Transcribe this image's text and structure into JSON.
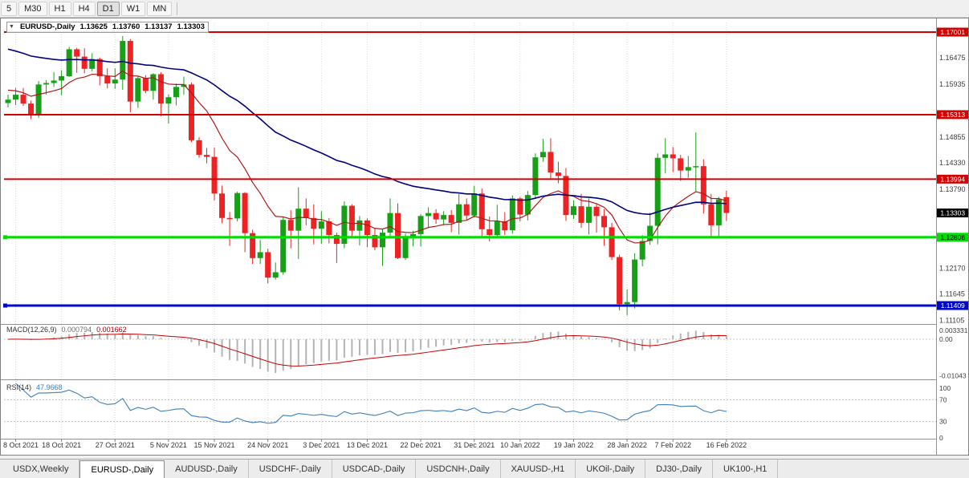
{
  "toolbar": {
    "timeframes": [
      {
        "label": "5"
      },
      {
        "label": "M30"
      },
      {
        "label": "H1"
      },
      {
        "label": "H4"
      },
      {
        "label": "D1",
        "active": true
      },
      {
        "label": "W1"
      },
      {
        "label": "MN"
      }
    ]
  },
  "chart_header": {
    "symbol": "EURUSD-,Daily",
    "open": "1.13625",
    "high": "1.13760",
    "low": "1.13137",
    "close": "1.13303"
  },
  "colors": {
    "candle_up": "#16a016",
    "candle_down": "#ee2222",
    "grid": "#dadada",
    "axis_text": "#3c3c3c",
    "separator": "#909090"
  },
  "chart_data": {
    "type": "candlestick",
    "symbol": "EURUSD",
    "timeframe": "Daily",
    "price_axis": {
      "min": 1.11048,
      "max": 1.17198,
      "ticks": [
        "1.16475",
        "1.15935",
        "1.14855",
        "1.14330",
        "1.13790",
        "1.12170",
        "1.11645",
        "1.11105"
      ]
    },
    "x_labels": [
      {
        "text": "8 Oct 2021",
        "i": 1
      },
      {
        "text": "18 Oct 2021",
        "i": 7
      },
      {
        "text": "27 Oct 2021",
        "i": 14
      },
      {
        "text": "5 Nov 2021",
        "i": 21
      },
      {
        "text": "15 Nov 2021",
        "i": 27
      },
      {
        "text": "24 Nov 2021",
        "i": 34
      },
      {
        "text": "3 Dec 2021",
        "i": 41
      },
      {
        "text": "13 Dec 2021",
        "i": 47
      },
      {
        "text": "22 Dec 2021",
        "i": 54
      },
      {
        "text": "31 Dec 2021",
        "i": 61
      },
      {
        "text": "10 Jan 2022",
        "i": 67
      },
      {
        "text": "19 Jan 2022",
        "i": 74
      },
      {
        "text": "28 Jan 2022",
        "i": 81
      },
      {
        "text": "7 Feb 2022",
        "i": 87
      },
      {
        "text": "16 Feb 2022",
        "i": 94
      }
    ],
    "h_lines": [
      {
        "price": 1.17001,
        "label": "1.17001",
        "color": "#d40000",
        "stroke": 2,
        "badge_text": "#ffffff"
      },
      {
        "price": 1.15313,
        "label": "1.15313",
        "color": "#d40000",
        "stroke": 2,
        "badge_text": "#ffffff"
      },
      {
        "price": 1.13994,
        "label": "1.13994",
        "color": "#d40000",
        "stroke": 2,
        "badge_text": "#ffffff"
      },
      {
        "price": 1.12806,
        "label": "1.12806",
        "color": "#00dd00",
        "stroke": 3,
        "handle": true,
        "badge_text": "#000000"
      },
      {
        "price": 1.11409,
        "label": "1.11409",
        "color": "#0008cc",
        "stroke": 3,
        "handle": true,
        "badge_text": "#ffffff"
      }
    ],
    "current_price": {
      "price": 1.13303,
      "label": "1.13303",
      "badge_color": "#000000",
      "text_color": "#ffffff"
    },
    "moving_averages": [
      {
        "name": "ma-fast",
        "period": 12,
        "seed": 1.1585,
        "color": "#b01818",
        "width": 1.2
      },
      {
        "name": "ma-slow",
        "period": 45,
        "seed": 1.167,
        "color": "#000080",
        "width": 1.6
      }
    ],
    "ohlc": [
      [
        1.1555,
        1.1572,
        1.1546,
        1.1562
      ],
      [
        1.1562,
        1.1586,
        1.1551,
        1.1572
      ],
      [
        1.1572,
        1.1586,
        1.1549,
        1.1554
      ],
      [
        1.1554,
        1.156,
        1.1522,
        1.153
      ],
      [
        1.153,
        1.16,
        1.1525,
        1.1593
      ],
      [
        1.1593,
        1.1602,
        1.1572,
        1.1596
      ],
      [
        1.1596,
        1.1618,
        1.1588,
        1.1601
      ],
      [
        1.1601,
        1.1622,
        1.1571,
        1.161
      ],
      [
        1.161,
        1.167,
        1.1608,
        1.1665
      ],
      [
        1.1665,
        1.1668,
        1.1617,
        1.165
      ],
      [
        1.165,
        1.1667,
        1.1616,
        1.1625
      ],
      [
        1.1625,
        1.1657,
        1.162,
        1.1645
      ],
      [
        1.1645,
        1.1648,
        1.1591,
        1.161
      ],
      [
        1.161,
        1.1626,
        1.1585,
        1.1595
      ],
      [
        1.1595,
        1.1626,
        1.1584,
        1.1603
      ],
      [
        1.1603,
        1.1692,
        1.1582,
        1.1682
      ],
      [
        1.1682,
        1.1686,
        1.1536,
        1.1558
      ],
      [
        1.1558,
        1.1609,
        1.1545,
        1.1606
      ],
      [
        1.1606,
        1.1612,
        1.1575,
        1.158
      ],
      [
        1.158,
        1.1616,
        1.1562,
        1.1614
      ],
      [
        1.1614,
        1.1618,
        1.1528,
        1.1554
      ],
      [
        1.1554,
        1.1573,
        1.1513,
        1.1567
      ],
      [
        1.1567,
        1.1595,
        1.155,
        1.1588
      ],
      [
        1.1588,
        1.1609,
        1.1572,
        1.1593
      ],
      [
        1.1593,
        1.1597,
        1.1475,
        1.1479
      ],
      [
        1.1479,
        1.1485,
        1.1443,
        1.1449
      ],
      [
        1.1449,
        1.1463,
        1.1432,
        1.1445
      ],
      [
        1.1445,
        1.1464,
        1.1356,
        1.137
      ],
      [
        1.137,
        1.1386,
        1.1309,
        1.132
      ],
      [
        1.132,
        1.1332,
        1.1263,
        1.1319
      ],
      [
        1.1319,
        1.1374,
        1.1313,
        1.1371
      ],
      [
        1.1371,
        1.1373,
        1.125,
        1.1289
      ],
      [
        1.1289,
        1.1296,
        1.1226,
        1.1238
      ],
      [
        1.1238,
        1.1275,
        1.1226,
        1.125
      ],
      [
        1.125,
        1.1257,
        1.1186,
        1.1198
      ],
      [
        1.1198,
        1.1229,
        1.1194,
        1.1209
      ],
      [
        1.1209,
        1.1323,
        1.1204,
        1.1316
      ],
      [
        1.1316,
        1.1336,
        1.1258,
        1.1294
      ],
      [
        1.1294,
        1.1383,
        1.1236,
        1.1339
      ],
      [
        1.1339,
        1.136,
        1.1305,
        1.132
      ],
      [
        1.132,
        1.1348,
        1.1266,
        1.1298
      ],
      [
        1.1298,
        1.1334,
        1.1267,
        1.1313
      ],
      [
        1.1313,
        1.132,
        1.1268,
        1.1285
      ],
      [
        1.1285,
        1.129,
        1.1228,
        1.1267
      ],
      [
        1.1267,
        1.1354,
        1.1258,
        1.1345
      ],
      [
        1.1345,
        1.1348,
        1.128,
        1.1294
      ],
      [
        1.1294,
        1.1324,
        1.1264,
        1.1315
      ],
      [
        1.1315,
        1.1319,
        1.126,
        1.1285
      ],
      [
        1.1285,
        1.13,
        1.1254,
        1.126
      ],
      [
        1.126,
        1.1298,
        1.1222,
        1.129
      ],
      [
        1.129,
        1.136,
        1.128,
        1.133
      ],
      [
        1.133,
        1.135,
        1.1236,
        1.1238
      ],
      [
        1.1238,
        1.1288,
        1.1234,
        1.128
      ],
      [
        1.128,
        1.1294,
        1.1262,
        1.1287
      ],
      [
        1.1287,
        1.1328,
        1.1262,
        1.1324
      ],
      [
        1.1324,
        1.1342,
        1.1301,
        1.133
      ],
      [
        1.133,
        1.1338,
        1.1308,
        1.1317
      ],
      [
        1.1317,
        1.1334,
        1.1305,
        1.1326
      ],
      [
        1.1326,
        1.1336,
        1.1291,
        1.131
      ],
      [
        1.131,
        1.1369,
        1.1286,
        1.1348
      ],
      [
        1.1348,
        1.136,
        1.1316,
        1.1325
      ],
      [
        1.1325,
        1.1386,
        1.1321,
        1.137
      ],
      [
        1.137,
        1.138,
        1.1279,
        1.1297
      ],
      [
        1.1297,
        1.1323,
        1.1272,
        1.1285
      ],
      [
        1.1285,
        1.1347,
        1.1281,
        1.1313
      ],
      [
        1.1313,
        1.1332,
        1.1285,
        1.1295
      ],
      [
        1.1295,
        1.1366,
        1.1288,
        1.136
      ],
      [
        1.136,
        1.1363,
        1.1313,
        1.1327
      ],
      [
        1.1327,
        1.1375,
        1.1315,
        1.1367
      ],
      [
        1.1367,
        1.1452,
        1.136,
        1.1444
      ],
      [
        1.1444,
        1.1482,
        1.1435,
        1.1455
      ],
      [
        1.1455,
        1.1483,
        1.1398,
        1.1413
      ],
      [
        1.1413,
        1.1435,
        1.1391,
        1.1406
      ],
      [
        1.1406,
        1.1422,
        1.1314,
        1.1326
      ],
      [
        1.1326,
        1.1356,
        1.1318,
        1.1344
      ],
      [
        1.1344,
        1.1369,
        1.13,
        1.131
      ],
      [
        1.131,
        1.136,
        1.1286,
        1.1343
      ],
      [
        1.1343,
        1.1349,
        1.129,
        1.1324
      ],
      [
        1.1324,
        1.1338,
        1.1263,
        1.1301
      ],
      [
        1.1301,
        1.131,
        1.1234,
        1.124
      ],
      [
        1.124,
        1.1245,
        1.1131,
        1.1144
      ],
      [
        1.1144,
        1.1174,
        1.1121,
        1.1148
      ],
      [
        1.1148,
        1.1248,
        1.1135,
        1.1235
      ],
      [
        1.1235,
        1.1285,
        1.1221,
        1.1273
      ],
      [
        1.1273,
        1.1331,
        1.1265,
        1.1304
      ],
      [
        1.1304,
        1.1452,
        1.1266,
        1.1443
      ],
      [
        1.1443,
        1.1483,
        1.1411,
        1.145
      ],
      [
        1.145,
        1.1465,
        1.1414,
        1.1442
      ],
      [
        1.1442,
        1.1449,
        1.1396,
        1.1417
      ],
      [
        1.1417,
        1.1447,
        1.1402,
        1.1424
      ],
      [
        1.1424,
        1.1495,
        1.1375,
        1.1426
      ],
      [
        1.1426,
        1.144,
        1.1329,
        1.1348
      ],
      [
        1.1348,
        1.1369,
        1.128,
        1.1305
      ],
      [
        1.1305,
        1.1363,
        1.1279,
        1.1358
      ],
      [
        1.13625,
        1.1376,
        1.13137,
        1.13303
      ]
    ]
  },
  "macd_panel": {
    "title": "MACD(12,26,9)",
    "value_main": "0.000794",
    "value_signal": "0.001662",
    "params": {
      "fast": 12,
      "slow": 26,
      "signal": 9
    },
    "ticks": [
      {
        "label": "0.003331",
        "value": 0.003331
      },
      {
        "label": "0.00",
        "value": 0
      },
      {
        "label": "-0.01043",
        "value": -0.01043
      }
    ],
    "hist_color": "#b4b4b4",
    "signal_color": "#c80000"
  },
  "rsi_panel": {
    "title": "RSI(14)",
    "value": "47.9668",
    "period": 14,
    "levels": [
      70,
      30
    ],
    "ticks": [
      {
        "label": "100",
        "value": 100
      },
      {
        "label": "70",
        "value": 70
      },
      {
        "label": "30",
        "value": 30
      },
      {
        "label": "0",
        "value": 0
      }
    ],
    "color": "#3b7fbf"
  },
  "tabs": [
    {
      "label": "USDX,Weekly"
    },
    {
      "label": "EURUSD-,Daily",
      "active": true
    },
    {
      "label": "AUDUSD-,Daily"
    },
    {
      "label": "USDCHF-,Daily"
    },
    {
      "label": "USDCAD-,Daily"
    },
    {
      "label": "USDCNH-,Daily"
    },
    {
      "label": "XAUUSD-,H1"
    },
    {
      "label": "UKOil-,Daily"
    },
    {
      "label": "DJ30-,Daily"
    },
    {
      "label": "UK100-,H1"
    }
  ]
}
